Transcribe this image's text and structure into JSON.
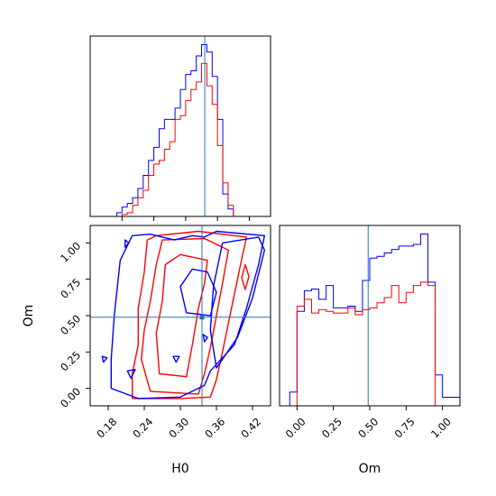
{
  "chart_data": [
    {
      "type": "step-histogram",
      "panel": "H0 marginal",
      "xlabel": "",
      "ylabel": "",
      "xlim": [
        0.12,
        0.46
      ],
      "xticks": [
        0.18,
        0.24,
        0.3,
        0.36,
        0.42
      ],
      "show_tick_labels": false,
      "truth_line": {
        "x": 0.336,
        "color": "#1f77b4"
      },
      "bin_edges": [
        0.17,
        0.18,
        0.19,
        0.2,
        0.21,
        0.22,
        0.23,
        0.24,
        0.25,
        0.26,
        0.27,
        0.28,
        0.29,
        0.3,
        0.31,
        0.32,
        0.33,
        0.34,
        0.35,
        0.36,
        0.37,
        0.38,
        0.39
      ],
      "series": [
        {
          "color": "#0000ff",
          "counts": [
            2,
            5,
            7,
            10,
            15,
            22,
            30,
            37,
            47,
            52,
            52,
            58,
            68,
            76,
            78,
            86,
            92,
            88,
            75,
            52,
            12,
            4
          ]
        },
        {
          "color": "#ff0000",
          "counts": [
            0,
            1,
            2,
            6,
            10,
            14,
            22,
            28,
            30,
            36,
            40,
            52,
            54,
            62,
            68,
            72,
            82,
            70,
            60,
            38,
            18,
            6
          ]
        }
      ]
    },
    {
      "type": "contour",
      "panel": "Om vs H0",
      "xlabel": "H0",
      "ylabel": "Om",
      "xlim": [
        0.15,
        0.45
      ],
      "ylim": [
        -0.12,
        1.12
      ],
      "xticks": [
        "0.18",
        "0.24",
        "0.30",
        "0.36",
        "0.42"
      ],
      "yticks": [
        "0.00",
        "0.25",
        "0.50",
        "0.75",
        "1.00"
      ],
      "truth_point": {
        "x": 0.336,
        "y": 0.489,
        "color": "#1f77b4"
      },
      "series": [
        {
          "color": "#ff0000",
          "contours": [
            [
              [
                0.22,
                -0.07
              ],
              [
                0.3,
                -0.07
              ],
              [
                0.35,
                -0.06
              ],
              [
                0.36,
                0.06
              ],
              [
                0.37,
                0.25
              ],
              [
                0.38,
                0.45
              ],
              [
                0.39,
                0.65
              ],
              [
                0.4,
                0.85
              ],
              [
                0.41,
                1.04
              ],
              [
                0.33,
                1.08
              ],
              [
                0.26,
                1.05
              ],
              [
                0.245,
                1.02
              ],
              [
                0.24,
                0.8
              ],
              [
                0.23,
                0.55
              ],
              [
                0.23,
                0.3
              ],
              [
                0.22,
                0.1
              ],
              [
                0.22,
                -0.07
              ]
            ],
            [
              [
                0.25,
                -0.02
              ],
              [
                0.33,
                -0.04
              ],
              [
                0.34,
                0.1
              ],
              [
                0.35,
                0.28
              ],
              [
                0.36,
                0.5
              ],
              [
                0.37,
                0.72
              ],
              [
                0.38,
                0.95
              ],
              [
                0.34,
                1.03
              ],
              [
                0.27,
                1.02
              ],
              [
                0.26,
                0.85
              ],
              [
                0.25,
                0.6
              ],
              [
                0.24,
                0.4
              ],
              [
                0.235,
                0.2
              ],
              [
                0.25,
                -0.02
              ]
            ],
            [
              [
                0.265,
                0.1
              ],
              [
                0.31,
                0.08
              ],
              [
                0.32,
                0.3
              ],
              [
                0.33,
                0.55
              ],
              [
                0.34,
                0.72
              ],
              [
                0.345,
                0.88
              ],
              [
                0.3,
                0.92
              ],
              [
                0.275,
                0.85
              ],
              [
                0.27,
                0.6
              ],
              [
                0.26,
                0.38
              ],
              [
                0.265,
                0.1
              ]
            ],
            [
              [
                0.402,
                0.76
              ],
              [
                0.408,
                0.85
              ],
              [
                0.414,
                0.77
              ],
              [
                0.408,
                0.68
              ],
              [
                0.402,
                0.76
              ]
            ]
          ]
        },
        {
          "color": "#0000ff",
          "contours": [
            [
              [
                0.185,
                0.0
              ],
              [
                0.23,
                -0.07
              ],
              [
                0.3,
                -0.06
              ],
              [
                0.34,
                0.02
              ],
              [
                0.35,
                0.12
              ],
              [
                0.39,
                0.3
              ],
              [
                0.41,
                0.55
              ],
              [
                0.43,
                0.85
              ],
              [
                0.44,
                1.05
              ],
              [
                0.36,
                1.08
              ],
              [
                0.34,
                1.04
              ],
              [
                0.32,
                1.05
              ],
              [
                0.29,
                1.02
              ],
              [
                0.25,
                1.06
              ],
              [
                0.22,
                1.05
              ],
              [
                0.2,
                0.88
              ],
              [
                0.19,
                0.5
              ],
              [
                0.185,
                0.2
              ],
              [
                0.185,
                0.0
              ]
            ],
            [
              [
                0.36,
                0.14
              ],
              [
                0.395,
                0.35
              ],
              [
                0.42,
                0.62
              ],
              [
                0.44,
                0.95
              ],
              [
                0.43,
                1.04
              ],
              [
                0.37,
                1.0
              ],
              [
                0.355,
                0.7
              ],
              [
                0.35,
                0.4
              ],
              [
                0.36,
                0.14
              ]
            ],
            [
              [
                0.31,
                0.52
              ],
              [
                0.35,
                0.5
              ],
              [
                0.36,
                0.66
              ],
              [
                0.345,
                0.8
              ],
              [
                0.32,
                0.82
              ],
              [
                0.3,
                0.7
              ],
              [
                0.31,
                0.52
              ]
            ],
            [
              [
                0.212,
                0.12
              ],
              [
                0.225,
                0.13
              ],
              [
                0.218,
                0.07
              ],
              [
                0.212,
                0.12
              ]
            ],
            [
              [
                0.17,
                0.22
              ],
              [
                0.178,
                0.21
              ],
              [
                0.172,
                0.18
              ],
              [
                0.17,
                0.22
              ]
            ],
            [
              [
                0.208,
                1.02
              ],
              [
                0.214,
                1.0
              ],
              [
                0.208,
                0.97
              ],
              [
                0.208,
                1.02
              ]
            ],
            [
              [
                0.288,
                0.22
              ],
              [
                0.298,
                0.22
              ],
              [
                0.293,
                0.18
              ],
              [
                0.288,
                0.22
              ]
            ],
            [
              [
                0.338,
                0.37
              ],
              [
                0.345,
                0.35
              ],
              [
                0.34,
                0.32
              ],
              [
                0.338,
                0.37
              ]
            ]
          ]
        }
      ]
    },
    {
      "type": "step-histogram",
      "panel": "Om marginal",
      "xlabel": "Om",
      "ylabel": "",
      "xlim": [
        -0.12,
        1.12
      ],
      "xticks": [
        "0.00",
        "0.25",
        "0.50",
        "0.75",
        "1.00"
      ],
      "truth_line": {
        "x": 0.489,
        "color": "#1f77b4"
      },
      "bin_edges": [
        -0.05,
        0.0,
        0.05,
        0.1,
        0.15,
        0.2,
        0.25,
        0.3,
        0.35,
        0.4,
        0.45,
        0.5,
        0.55,
        0.6,
        0.65,
        0.7,
        0.75,
        0.8,
        0.85,
        0.9,
        0.95,
        1.0,
        1.05,
        1.12
      ],
      "series": [
        {
          "color": "#0000ff",
          "counts": [
            8,
            55,
            67,
            68,
            62,
            70,
            57,
            57,
            58,
            55,
            73,
            86,
            87,
            89,
            91,
            93,
            93,
            94,
            100,
            72,
            18,
            5,
            5
          ]
        },
        {
          "color": "#ff0000",
          "counts": [
            0,
            58,
            62,
            54,
            56,
            55,
            54,
            54,
            57,
            53,
            56,
            57,
            60,
            63,
            70,
            60,
            66,
            70,
            72,
            70,
            0,
            0,
            0
          ]
        }
      ]
    }
  ]
}
